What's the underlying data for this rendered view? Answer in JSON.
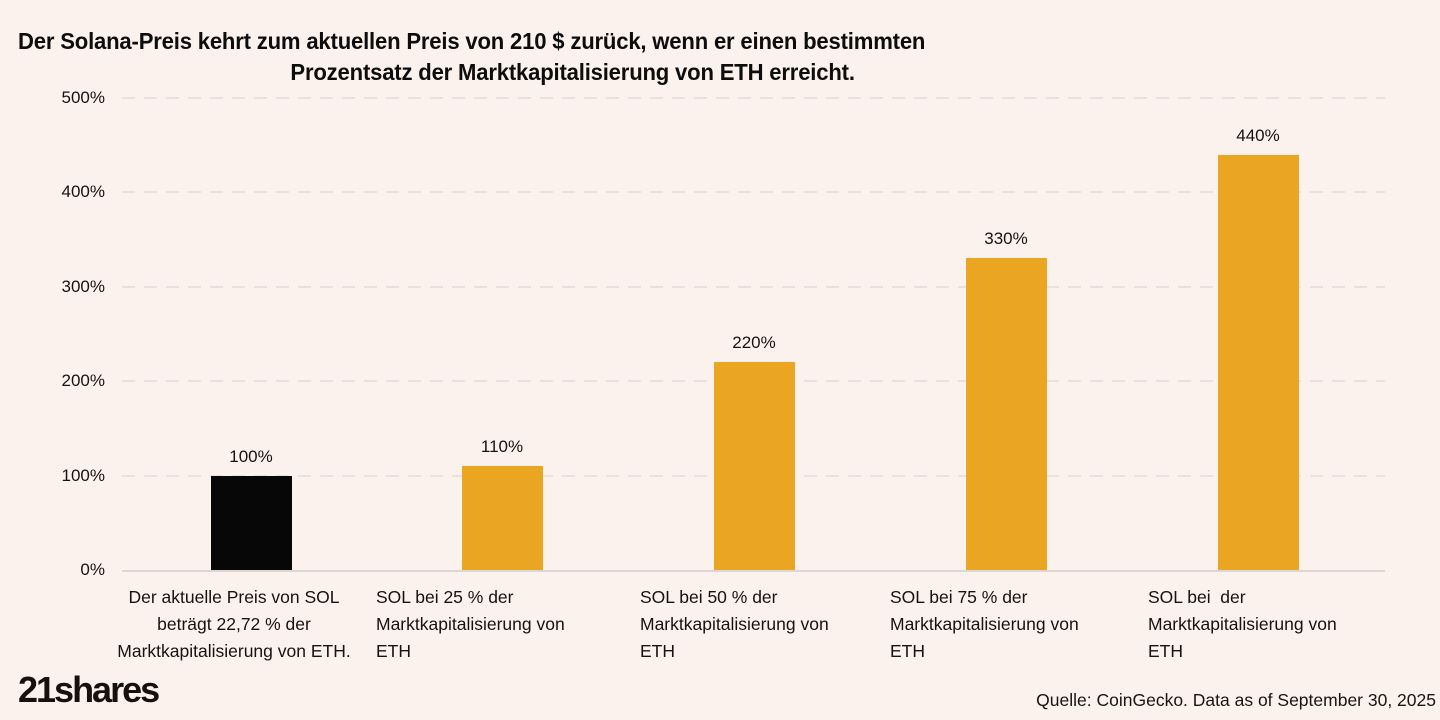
{
  "title": {
    "line1": "Der Solana-Preis kehrt zum aktuellen Preis von 210 $ zurück, wenn er einen bestimmten",
    "line2": "Prozentsatz der Marktkapitalisierung von ETH erreicht."
  },
  "chart_data": {
    "type": "bar",
    "title": "Der Solana-Preis kehrt zum aktuellen Preis von 210 $ zurück, wenn er einen bestimmten Prozentsatz der Marktkapitalisierung von ETH erreicht.",
    "categories": [
      "Der aktuelle Preis von SOL beträgt 22,72 % der Marktkapitalisierung von ETH.",
      "SOL bei 25 % der Marktkapitalisierung von ETH",
      "SOL bei 50 % der Marktkapitalisierung von ETH",
      "SOL bei 75 % der Marktkapitalisierung von ETH",
      "SOL bei  der Marktkapitalisierung von ETH"
    ],
    "values": [
      100,
      110,
      220,
      330,
      440
    ],
    "value_labels": [
      "100%",
      "110%",
      "220%",
      "330%",
      "440%"
    ],
    "bar_colors": [
      "#070707",
      "#eaa622",
      "#eaa622",
      "#eaa622",
      "#eaa622"
    ],
    "xlabel": "",
    "ylabel": "",
    "ylim": [
      0,
      500
    ],
    "ytick_step": 100,
    "ytick_labels": [
      "0%",
      "100%",
      "200%",
      "300%",
      "400%",
      "500%"
    ],
    "grid": "horizontal-dashed",
    "legend": "none",
    "accent_color": "#eaa622",
    "highlight_color": "#070707",
    "background_color": "#fcf2ed"
  },
  "footer": {
    "logo": "21shares",
    "source": "Quelle: CoinGecko. Data as of September 30, 2025"
  }
}
